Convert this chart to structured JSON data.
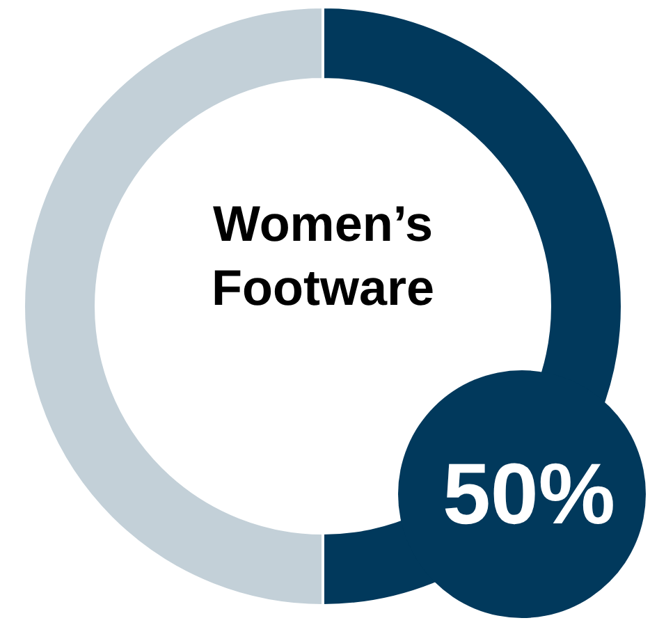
{
  "chart_data": {
    "type": "donut",
    "title": "Women’s Footware",
    "categories": [
      null,
      null
    ],
    "values": [
      50,
      50
    ],
    "colors": [
      "#01395c",
      "#c3d0d8"
    ],
    "value_labels": [
      "50%",
      null
    ]
  }
}
